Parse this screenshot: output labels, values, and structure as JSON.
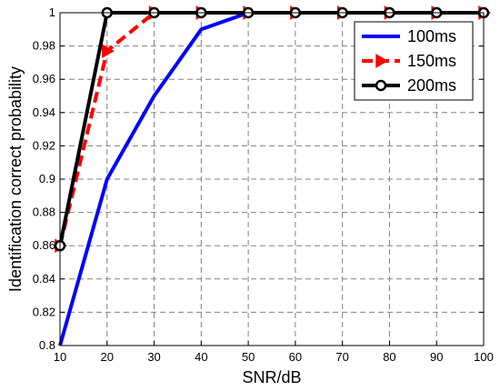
{
  "chart_data": {
    "type": "line",
    "title": "",
    "xlabel": "SNR/dB",
    "ylabel": "Identification correct probability",
    "xlim": [
      10,
      100
    ],
    "ylim": [
      0.8,
      1.0
    ],
    "xticks": [
      10,
      20,
      30,
      40,
      50,
      60,
      70,
      80,
      90,
      100
    ],
    "yticks": [
      0.8,
      0.82,
      0.84,
      0.86,
      0.88,
      0.9,
      0.92,
      0.94,
      0.96,
      0.98,
      1.0
    ],
    "xtick_labels": [
      "10",
      "20",
      "30",
      "40",
      "50",
      "60",
      "70",
      "80",
      "90",
      "100"
    ],
    "ytick_labels": [
      "0.8",
      "0.82",
      "0.84",
      "0.86",
      "0.88",
      "0.9",
      "0.92",
      "0.94",
      "0.96",
      "0.98",
      "1"
    ],
    "grid": true,
    "legend_position": "top-right",
    "x": [
      10,
      20,
      30,
      40,
      50,
      60,
      70,
      80,
      90,
      100
    ],
    "series": [
      {
        "name": "100ms",
        "values": [
          0.8,
          0.9,
          0.95,
          0.99,
          1.0,
          1.0,
          1.0,
          1.0,
          1.0,
          1.0
        ],
        "color": "#0000ff",
        "style": "solid",
        "marker": "none"
      },
      {
        "name": "150ms",
        "values": [
          0.86,
          0.977,
          1.0,
          1.0,
          1.0,
          1.0,
          1.0,
          1.0,
          1.0,
          1.0
        ],
        "color": "#ff0000",
        "style": "dashed",
        "marker": "triangle-right"
      },
      {
        "name": "200ms",
        "values": [
          0.86,
          1.0,
          1.0,
          1.0,
          1.0,
          1.0,
          1.0,
          1.0,
          1.0,
          1.0
        ],
        "color": "#000000",
        "style": "solid",
        "marker": "circle"
      }
    ]
  }
}
